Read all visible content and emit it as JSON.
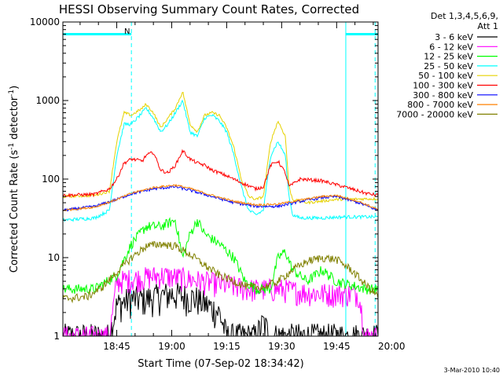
{
  "chart_data": {
    "type": "line",
    "title": "HESSI Observing Summary Count Rates, Corrected",
    "xlabel": "Start Time (07-Sep-02 18:34:42)",
    "ylabel": "Corrected Count Rate (s",
    "ylabel_sup1": "-1",
    "ylabel_mid": " detector",
    "ylabel_sup2": "-1",
    "ylabel_end": ")",
    "timestamp": "3-Mar-2010 10:40",
    "legend_header1": "Det 1,3,4,5,6,9,",
    "legend_header2": "Att 1",
    "y_scale": "log",
    "ylim": [
      1,
      10000
    ],
    "y_ticks": [
      {
        "value": 1,
        "label": "1"
      },
      {
        "value": 10,
        "label": "10"
      },
      {
        "value": 100,
        "label": "100"
      },
      {
        "value": 1000,
        "label": "1000"
      },
      {
        "value": 10000,
        "label": "10000"
      }
    ],
    "xlim_minutes": [
      -4.7,
      81.3
    ],
    "x_ticks": [
      {
        "minute": 10,
        "label": "18:45"
      },
      {
        "minute": 25,
        "label": "19:00"
      },
      {
        "minute": 40,
        "label": "19:15"
      },
      {
        "minute": 55,
        "label": "19:30"
      },
      {
        "minute": 70,
        "label": "19:45"
      },
      {
        "minute": 85,
        "label": "20:00"
      }
    ],
    "annotations": {
      "night_label": "N",
      "bars": [
        {
          "from": -4.7,
          "to": 14.0,
          "y": 7000,
          "color": "#00ffff"
        },
        {
          "from": 72.5,
          "to": 81.3,
          "y": 7000,
          "color": "#00ffff"
        }
      ],
      "dashed_lines": [
        14.0,
        80.5
      ],
      "solid_lines": [
        -4.7,
        72.5
      ]
    },
    "series": [
      {
        "name": "3 - 6 keV",
        "color": "#000000",
        "points": [
          [
            -4.7,
            1
          ],
          [
            8.0,
            1
          ],
          [
            10.0,
            2.5
          ],
          [
            14.0,
            3
          ],
          [
            18.0,
            3
          ],
          [
            25.0,
            3.5
          ],
          [
            32.0,
            3
          ],
          [
            38.0,
            2
          ],
          [
            40.0,
            1
          ],
          [
            48.0,
            1
          ],
          [
            50.0,
            1.5
          ],
          [
            52.0,
            1
          ]
        ]
      },
      {
        "name": "6 - 12 keV",
        "color": "#ff00ff",
        "points": [
          [
            -4.7,
            1
          ],
          [
            8.0,
            1
          ],
          [
            10.0,
            5
          ],
          [
            16.0,
            5.5
          ],
          [
            22.0,
            6
          ],
          [
            28.0,
            5.5
          ],
          [
            34.0,
            5
          ],
          [
            40.0,
            4.5
          ],
          [
            46.0,
            4
          ],
          [
            55.0,
            4
          ],
          [
            62.0,
            3.6
          ],
          [
            68.0,
            3.5
          ],
          [
            76.0,
            3.5
          ],
          [
            78.0,
            1
          ]
        ]
      },
      {
        "name": "12 - 25 keV",
        "color": "#00ff00",
        "points": [
          [
            -4.7,
            4
          ],
          [
            4.0,
            4
          ],
          [
            10.0,
            6
          ],
          [
            14.0,
            15
          ],
          [
            18.0,
            25
          ],
          [
            22.0,
            25
          ],
          [
            26.0,
            30
          ],
          [
            28.0,
            10
          ],
          [
            30.0,
            20
          ],
          [
            32.0,
            30
          ],
          [
            34.0,
            20
          ],
          [
            38.0,
            15
          ],
          [
            42.0,
            10
          ],
          [
            45.0,
            5
          ],
          [
            48.0,
            4
          ],
          [
            52.0,
            4
          ],
          [
            54.0,
            10
          ],
          [
            56.0,
            12
          ],
          [
            58.0,
            7
          ],
          [
            62.0,
            5
          ],
          [
            66.0,
            7
          ],
          [
            70.0,
            5
          ],
          [
            78.0,
            4
          ],
          [
            81.3,
            4
          ]
        ]
      },
      {
        "name": "25 - 50 keV",
        "color": "#00ffff",
        "points": [
          [
            -4.7,
            30
          ],
          [
            4.0,
            32
          ],
          [
            8.0,
            40
          ],
          [
            10.0,
            200
          ],
          [
            12.0,
            500
          ],
          [
            14.0,
            500
          ],
          [
            17.0,
            700
          ],
          [
            18.0,
            800
          ],
          [
            20.0,
            600
          ],
          [
            22.0,
            400
          ],
          [
            24.0,
            500
          ],
          [
            26.0,
            700
          ],
          [
            28.0,
            1000
          ],
          [
            30.0,
            400
          ],
          [
            32.0,
            350
          ],
          [
            34.0,
            600
          ],
          [
            36.0,
            650
          ],
          [
            38.0,
            550
          ],
          [
            40.0,
            400
          ],
          [
            42.0,
            200
          ],
          [
            44.0,
            80
          ],
          [
            46.0,
            40
          ],
          [
            48.0,
            35
          ],
          [
            50.0,
            40
          ],
          [
            52.0,
            200
          ],
          [
            54.0,
            300
          ],
          [
            56.0,
            200
          ],
          [
            57.0,
            60
          ],
          [
            58.0,
            35
          ],
          [
            60.0,
            32
          ],
          [
            66.0,
            32
          ],
          [
            72.0,
            33
          ],
          [
            78.0,
            33
          ],
          [
            81.3,
            33
          ]
        ]
      },
      {
        "name": "50 - 100 keV",
        "color": "#e6d200",
        "points": [
          [
            -4.7,
            60
          ],
          [
            4.0,
            62
          ],
          [
            8.0,
            70
          ],
          [
            10.0,
            300
          ],
          [
            12.0,
            700
          ],
          [
            14.0,
            650
          ],
          [
            17.0,
            800
          ],
          [
            18.0,
            900
          ],
          [
            20.0,
            700
          ],
          [
            22.0,
            450
          ],
          [
            24.0,
            600
          ],
          [
            26.0,
            800
          ],
          [
            28.0,
            1300
          ],
          [
            30.0,
            500
          ],
          [
            32.0,
            400
          ],
          [
            34.0,
            650
          ],
          [
            36.0,
            700
          ],
          [
            38.0,
            650
          ],
          [
            40.0,
            450
          ],
          [
            42.0,
            250
          ],
          [
            44.0,
            100
          ],
          [
            46.0,
            60
          ],
          [
            48.0,
            55
          ],
          [
            50.0,
            60
          ],
          [
            52.0,
            300
          ],
          [
            54.0,
            550
          ],
          [
            56.0,
            350
          ],
          [
            57.0,
            80
          ],
          [
            58.0,
            55
          ],
          [
            62.0,
            50
          ],
          [
            70.0,
            55
          ],
          [
            78.0,
            56
          ],
          [
            81.3,
            56
          ]
        ]
      },
      {
        "name": "100 - 300 keV",
        "color": "#ff0000",
        "points": [
          [
            -4.7,
            62
          ],
          [
            4.0,
            64
          ],
          [
            8.0,
            75
          ],
          [
            10.0,
            100
          ],
          [
            12.0,
            160
          ],
          [
            14.0,
            180
          ],
          [
            17.0,
            170
          ],
          [
            18.0,
            200
          ],
          [
            20.0,
            220
          ],
          [
            22.0,
            130
          ],
          [
            24.0,
            120
          ],
          [
            26.0,
            150
          ],
          [
            28.0,
            230
          ],
          [
            30.0,
            180
          ],
          [
            32.0,
            160
          ],
          [
            34.0,
            150
          ],
          [
            36.0,
            130
          ],
          [
            38.0,
            120
          ],
          [
            40.0,
            110
          ],
          [
            44.0,
            90
          ],
          [
            48.0,
            75
          ],
          [
            50.0,
            80
          ],
          [
            52.0,
            150
          ],
          [
            54.0,
            170
          ],
          [
            56.0,
            120
          ],
          [
            57.0,
            80
          ],
          [
            60.0,
            100
          ],
          [
            66.0,
            95
          ],
          [
            72.0,
            80
          ],
          [
            78.0,
            66
          ],
          [
            81.3,
            62
          ]
        ]
      },
      {
        "name": "300 - 800 keV",
        "color": "#0000ff",
        "points": [
          [
            -4.7,
            40
          ],
          [
            4.0,
            45
          ],
          [
            10.0,
            55
          ],
          [
            14.0,
            65
          ],
          [
            20.0,
            75
          ],
          [
            26.0,
            80
          ],
          [
            30.0,
            72
          ],
          [
            36.0,
            60
          ],
          [
            42.0,
            50
          ],
          [
            48.0,
            45
          ],
          [
            54.0,
            45
          ],
          [
            60.0,
            52
          ],
          [
            66.0,
            58
          ],
          [
            70.0,
            60
          ],
          [
            76.0,
            50
          ],
          [
            81.3,
            40
          ]
        ]
      },
      {
        "name": "800 - 7000 keV",
        "color": "#ff8000",
        "points": [
          [
            -4.7,
            40
          ],
          [
            4.0,
            44
          ],
          [
            10.0,
            55
          ],
          [
            14.0,
            66
          ],
          [
            20.0,
            78
          ],
          [
            26.0,
            84
          ],
          [
            30.0,
            76
          ],
          [
            36.0,
            62
          ],
          [
            42.0,
            52
          ],
          [
            48.0,
            47
          ],
          [
            54.0,
            48
          ],
          [
            60.0,
            54
          ],
          [
            66.0,
            60
          ],
          [
            70.0,
            62
          ],
          [
            76.0,
            52
          ],
          [
            81.3,
            41
          ]
        ]
      },
      {
        "name": "7000 - 20000 keV",
        "color": "#808000",
        "points": [
          [
            -4.7,
            3
          ],
          [
            2.0,
            3.2
          ],
          [
            6.0,
            4.2
          ],
          [
            10.0,
            6.5
          ],
          [
            14.0,
            10
          ],
          [
            18.0,
            14
          ],
          [
            22.0,
            15
          ],
          [
            26.0,
            14
          ],
          [
            30.0,
            11
          ],
          [
            34.0,
            8
          ],
          [
            38.0,
            6
          ],
          [
            42.0,
            5
          ],
          [
            46.0,
            4.2
          ],
          [
            50.0,
            4.2
          ],
          [
            54.0,
            5
          ],
          [
            58.0,
            7
          ],
          [
            62.0,
            9
          ],
          [
            66.0,
            10
          ],
          [
            70.0,
            9.5
          ],
          [
            74.0,
            7
          ],
          [
            78.0,
            4.5
          ],
          [
            81.3,
            3.2
          ]
        ]
      }
    ]
  }
}
